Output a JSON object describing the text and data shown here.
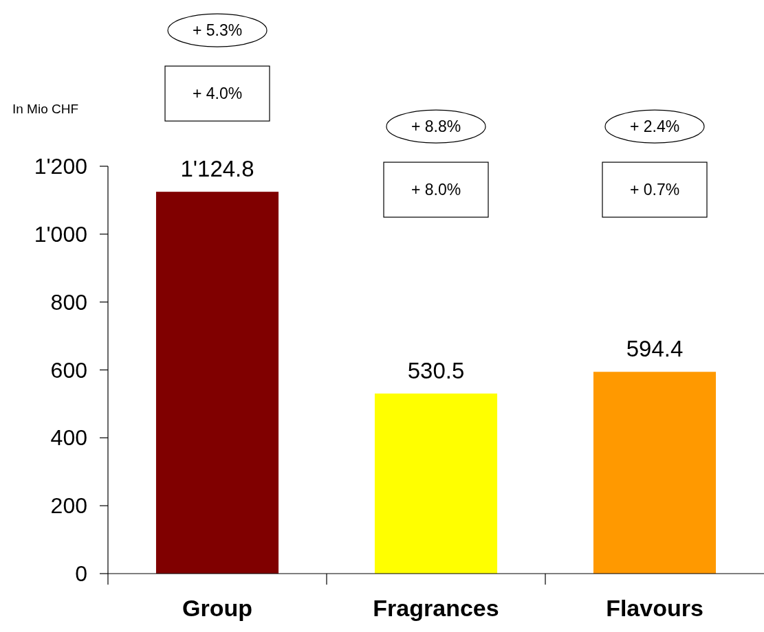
{
  "chart_data": {
    "type": "bar",
    "ylabel": "In Mio CHF",
    "categories": [
      "Group",
      "Fragrances",
      "Flavours"
    ],
    "values": [
      1124.8,
      530.5,
      594.4
    ],
    "colors": [
      "#800000",
      "#ffff00",
      "#ff9900"
    ],
    "value_labels": [
      "1'124.8",
      "530.5",
      "594.4"
    ],
    "ylim": [
      0,
      1200
    ],
    "yticks": [
      0,
      200,
      400,
      600,
      800,
      {
        "value": 1000,
        "label": "1'000"
      },
      {
        "value": 1200,
        "label": "1'200"
      }
    ],
    "grid": false,
    "annotations": [
      "+ 5.3%",
      "+ 4.0%",
      "+ 8.8%",
      "+ 8.0%",
      "+ 2.4%",
      "+ 0.7%"
    ]
  }
}
